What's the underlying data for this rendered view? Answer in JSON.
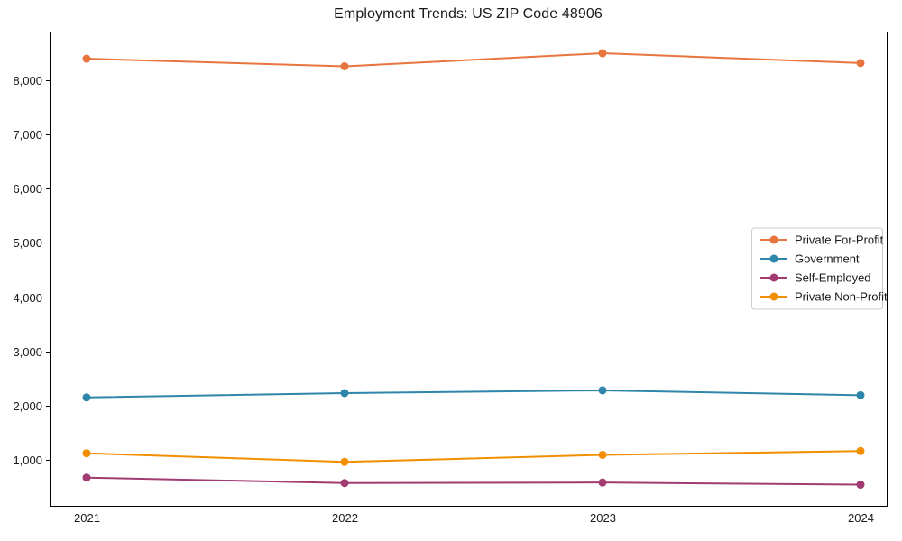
{
  "chart_data": {
    "type": "line",
    "title": "Employment Trends: US ZIP Code 48906",
    "x": [
      2021,
      2022,
      2023,
      2024
    ],
    "x_tick_labels": [
      "2021",
      "2022",
      "2023",
      "2024"
    ],
    "series": [
      {
        "name": "Private For-Profit",
        "color": "#E8743E",
        "values": [
          8400,
          8260,
          8500,
          8320
        ]
      },
      {
        "name": "Government",
        "color": "#2E86AB",
        "values": [
          2150,
          2230,
          2280,
          2190
        ]
      },
      {
        "name": "Self-Employed",
        "color": "#A23B72",
        "values": [
          670,
          570,
          580,
          540
        ]
      },
      {
        "name": "Private Non-Profit",
        "color": "#F18F01",
        "values": [
          1120,
          960,
          1090,
          1160
        ]
      }
    ],
    "xlabel": "",
    "ylabel": "",
    "ylim": [
      150,
      8900
    ],
    "y_ticks": [
      1000,
      2000,
      3000,
      4000,
      5000,
      6000,
      7000,
      8000
    ],
    "y_tick_labels": [
      "1,000",
      "2,000",
      "3,000",
      "4,000",
      "5,000",
      "6,000",
      "7,000",
      "8,000"
    ],
    "grid": false,
    "marker": "circle",
    "legend_position": "center-right",
    "legend_entries": [
      "Private For-Profit",
      "Government",
      "Self-Employed",
      "Private Non-Profit"
    ],
    "colors": {
      "background": "#ffffff",
      "spine": "#000000",
      "tick_text": "#1a1a1a",
      "legend_border": "#cccccc",
      "legend_background": "#ffffff"
    }
  }
}
